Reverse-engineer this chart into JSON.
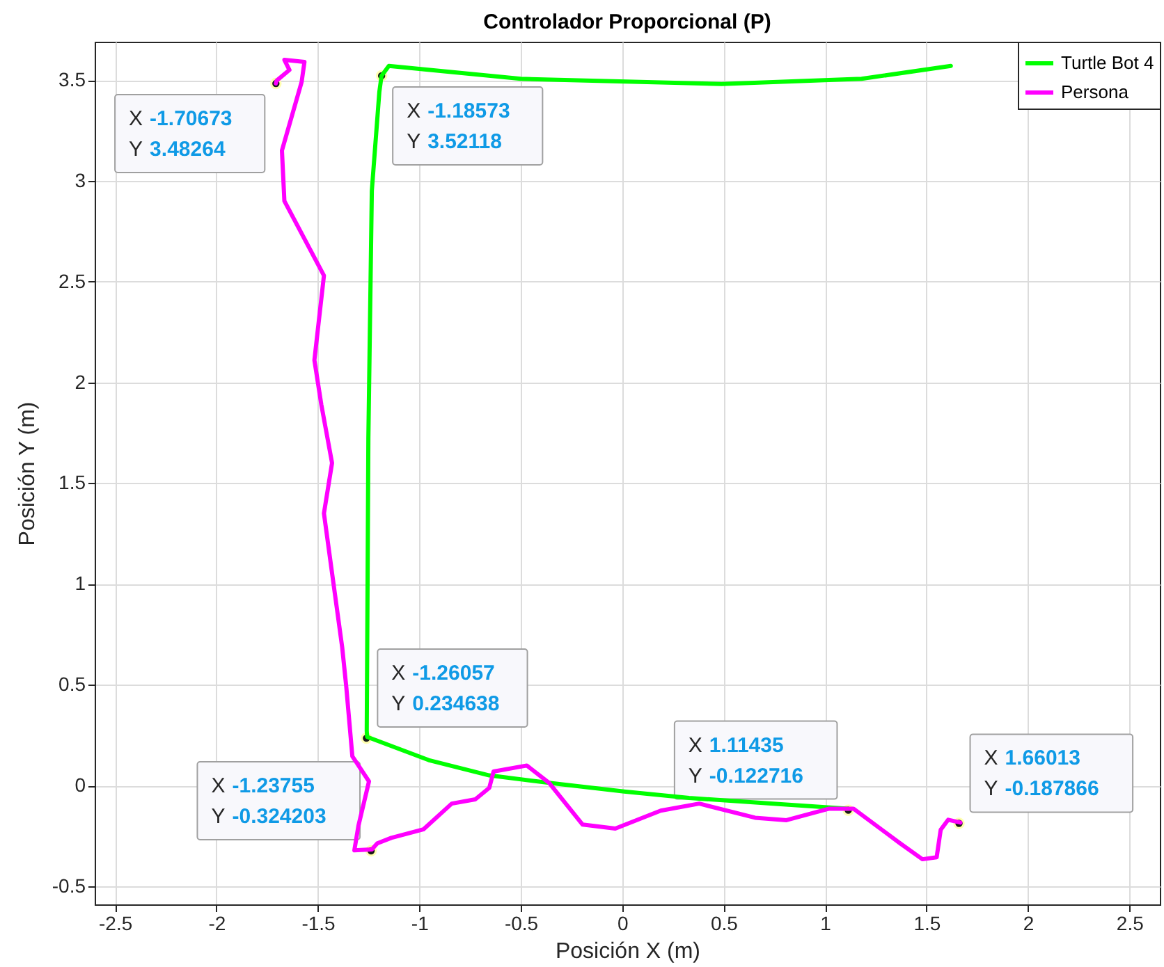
{
  "chart_data": {
    "type": "line",
    "title": "Controlador Proporcional (P)",
    "xlabel": "Posición X (m)",
    "ylabel": "Posición Y (m)",
    "xlim": [
      -2.6,
      2.65
    ],
    "ylim": [
      -0.59,
      3.69
    ],
    "xticks": [
      -2.5,
      -2,
      -1.5,
      -1,
      -0.5,
      0,
      0.5,
      1,
      1.5,
      2,
      2.5
    ],
    "yticks": [
      -0.5,
      0,
      0.5,
      1,
      1.5,
      2,
      2.5,
      3,
      3.5
    ],
    "grid": true,
    "legend": "top right",
    "marker": "none",
    "line_style": "solid",
    "series": [
      {
        "name": "Turtle Bot 4",
        "color": "#00ff00",
        "x": [
          1.114,
          0.77,
          0.33,
          0.01,
          -0.31,
          -0.655,
          -0.954,
          -1.257,
          -1.259,
          -1.251,
          -1.234,
          -1.197,
          -1.186,
          -1.15,
          -0.5,
          0.49,
          1.18,
          1.62
        ],
        "values": [
          -0.115,
          -0.092,
          -0.062,
          -0.03,
          0.007,
          0.05,
          0.126,
          0.241,
          0.27,
          1.72,
          2.95,
          3.44,
          3.521,
          3.57,
          3.506,
          3.48,
          3.506,
          3.57
        ]
      },
      {
        "name": "Persona",
        "color": "#ff00ff",
        "x": [
          1.667,
          1.607,
          1.57,
          1.55,
          1.48,
          1.37,
          1.14,
          1.02,
          0.81,
          0.655,
          0.38,
          0.19,
          -0.034,
          -0.195,
          -0.36,
          -0.47,
          -0.634,
          -0.655,
          -0.724,
          -0.84,
          -0.98,
          -1.138,
          -1.207,
          -1.234,
          -1.32,
          -1.3,
          -1.248,
          -1.33,
          -1.36,
          -1.38,
          -1.42,
          -1.47,
          -1.43,
          -1.483,
          -1.517,
          -1.47,
          -1.665,
          -1.677,
          -1.58,
          -1.566,
          -1.665,
          -1.64,
          -1.703,
          -1.707
        ],
        "values": [
          -0.184,
          -0.17,
          -0.22,
          -0.356,
          -0.366,
          -0.287,
          -0.115,
          -0.115,
          -0.172,
          -0.16,
          -0.09,
          -0.125,
          -0.214,
          -0.194,
          0.013,
          0.099,
          0.069,
          -0.012,
          -0.069,
          -0.09,
          -0.218,
          -0.26,
          -0.287,
          -0.317,
          -0.322,
          -0.2,
          0.02,
          0.145,
          0.49,
          0.685,
          0.98,
          1.35,
          1.6,
          1.89,
          2.11,
          2.53,
          2.9,
          3.15,
          3.49,
          3.59,
          3.6,
          3.55,
          3.497,
          3.483
        ]
      }
    ],
    "annotations": [
      {
        "text": "X -1.70673\nY 3.48264",
        "x": -1.70673,
        "y": 3.48264
      },
      {
        "text": "X -1.18573\nY 3.52118",
        "x": -1.18573,
        "y": 3.52118
      },
      {
        "text": "X -1.26057\nY 0.234638",
        "x": -1.26057,
        "y": 0.234638
      },
      {
        "text": "X -1.23755\nY -0.324203",
        "x": -1.23755,
        "y": -0.324203
      },
      {
        "text": "X 1.11435\nY -0.122716",
        "x": 1.11435,
        "y": -0.122716
      },
      {
        "text": "X 1.66013\nY -0.187866",
        "x": 1.66013,
        "y": -0.187866
      }
    ]
  }
}
